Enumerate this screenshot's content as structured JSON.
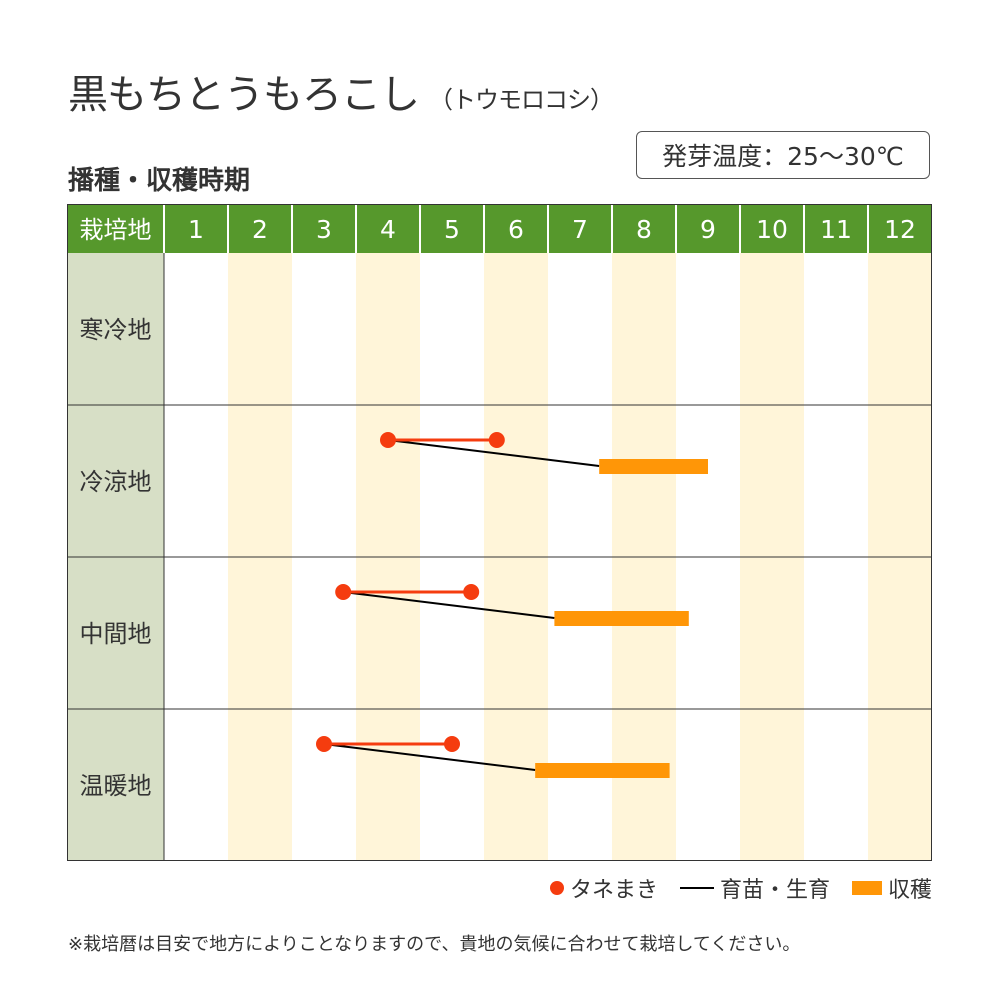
{
  "title": "黒もちとうもろこし",
  "title_sub": "（トウモロコシ）",
  "subtitle": "播種・収穫時期",
  "germination_temp": "発芽温度：25～30℃",
  "chart_data": {
    "type": "gantt",
    "header_label": "栽培地",
    "months": [
      "1",
      "2",
      "3",
      "4",
      "5",
      "6",
      "7",
      "8",
      "9",
      "10",
      "11",
      "12"
    ],
    "x_unit": "month position (1.0 = start of Jan, 13.0 = end of Dec)",
    "rows": [
      {
        "region": "寒冷地",
        "sowing": null,
        "harvest": null
      },
      {
        "region": "冷涼地",
        "sowing": [
          4.5,
          6.2
        ],
        "harvest": [
          7.8,
          9.5
        ]
      },
      {
        "region": "中間地",
        "sowing": [
          3.8,
          5.8
        ],
        "harvest": [
          7.1,
          9.2
        ]
      },
      {
        "region": "温暖地",
        "sowing": [
          3.5,
          5.5
        ],
        "harvest": [
          6.8,
          8.9
        ]
      }
    ],
    "colors": {
      "header": "#56982c",
      "region_bg": "#d7dfc6",
      "stripe": "#fff5d9",
      "sowing": "#f53c0f",
      "growing": "#000000",
      "harvest": "#ff9607"
    },
    "legend": [
      "タネまき",
      "育苗・生育",
      "収穫"
    ]
  },
  "note": "※栽培暦は目安で地方によりことなりますので、貴地の気候に合わせて栽培してください。"
}
